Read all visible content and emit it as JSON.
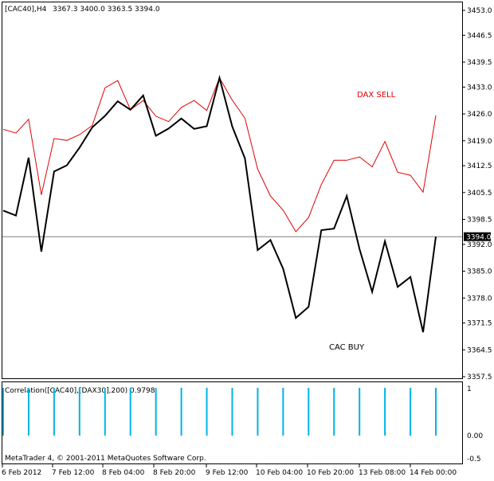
{
  "header": {
    "symbol_label": "[CAC40],H4",
    "ohlc": "3367.3 3400.0 3363.5 3394.0"
  },
  "annotations": {
    "dax_label": "DAX SELL",
    "cac_label": "CAC BUY"
  },
  "indicator": {
    "label": "Correlation([CAC40],[DAX30],200) 0.9798",
    "axis_ticks": [
      "1",
      "0.00",
      "-0.5"
    ]
  },
  "copyright": "MetaTrader 4, © 2001-2011 MetaQuotes Software Corp.",
  "colors": {
    "cac_line": "#000000",
    "dax_line": "#e00000",
    "histogram": "#00b4e6",
    "price_tag_bg": "#000000",
    "price_tag_text": "#ffffff",
    "frame": "#000000"
  },
  "chart_data": {
    "type": "line",
    "main": {
      "y_ticks": [
        "3453.0",
        "3446.5",
        "3439.5",
        "3433.0",
        "3426.0",
        "3419.0",
        "3412.5",
        "3405.5",
        "3398.5",
        "3392.0",
        "3385.0",
        "3378.0",
        "3371.5",
        "3364.5",
        "3357.5"
      ],
      "ylim": [
        3356.0,
        3455.0
      ],
      "current_price": 3394.0,
      "current_price_label": "3394.0",
      "x_labels": [
        "6 Feb 2012",
        "7 Feb 12:00",
        "8 Feb 04:00",
        "8 Feb 20:00",
        "9 Feb 12:00",
        "10 Feb 04:00",
        "10 Feb 20:00",
        "13 Feb 08:00",
        "14 Feb 00:00"
      ],
      "series": [
        {
          "name": "CAC BUY",
          "values": [
            3400.8,
            3399.5,
            3414.6,
            3390.1,
            3411.0,
            3412.6,
            3417.2,
            3422.5,
            3425.5,
            3429.3,
            3427.1,
            3430.8,
            3420.3,
            3422.2,
            3424.8,
            3422.1,
            3422.8,
            3435.4,
            3422.7,
            3414.4,
            3390.5,
            3393.1,
            3385.6,
            3372.8,
            3375.7,
            3395.7,
            3396.1,
            3404.6,
            3390.8,
            3379.6,
            3392.8,
            3380.9,
            3383.5,
            3369.1,
            3394.0
          ]
        },
        {
          "name": "DAX SELL",
          "values": [
            3422.0,
            3421.0,
            3424.6,
            3404.9,
            3419.6,
            3419.1,
            3420.6,
            3423.0,
            3432.8,
            3434.7,
            3427.1,
            3429.5,
            3425.4,
            3424.0,
            3427.7,
            3429.5,
            3426.9,
            3435.4,
            3429.6,
            3424.9,
            3411.6,
            3404.6,
            3400.9,
            3395.3,
            3399.0,
            3407.6,
            3413.9,
            3413.9,
            3414.8,
            3412.2,
            3418.8,
            3410.8,
            3410.0,
            3405.6,
            3425.6
          ]
        }
      ]
    },
    "indicator": {
      "type": "bar",
      "name": "Correlation([CAC40],[DAX30],200)",
      "ylim": [
        -0.5,
        1
      ],
      "values": [
        1,
        1,
        1,
        1,
        1,
        1,
        1,
        1,
        1,
        1,
        1,
        1,
        1,
        1,
        1,
        1,
        1,
        1,
        1,
        1,
        1,
        1,
        1,
        1,
        1,
        1,
        1,
        1,
        1,
        1,
        1,
        1,
        1,
        1,
        1
      ]
    }
  }
}
